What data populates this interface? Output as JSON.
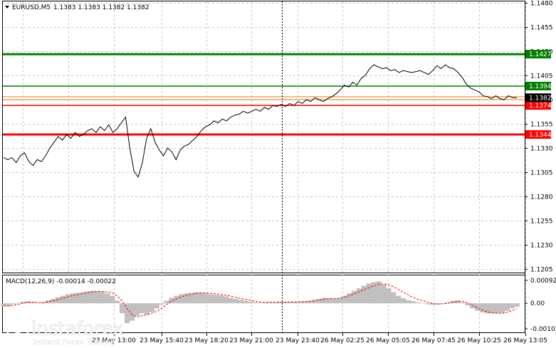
{
  "header": {
    "symbol": "EURUSD,M5",
    "ohlc": "1.1383 1.1383 1.1382 1.1382"
  },
  "macd": {
    "label": "MACD(12,26,9) -0.00014 -0.00022",
    "ticks": [
      "0.00092",
      "0.00",
      "-0.00102"
    ],
    "hist": [
      -0.00012,
      -0.0001,
      -4e-05,
      2e-05,
      6e-05,
      8e-05,
      4e-05,
      0.0,
      5e-05,
      0.00012,
      0.00018,
      0.00024,
      0.0003,
      0.00036,
      0.0004,
      0.00042,
      0.00045,
      0.00048,
      0.0005,
      0.00049,
      0.00046,
      0.0004,
      0.0003,
      0.0001,
      -0.0004,
      -0.0008,
      -0.0007,
      -0.0005,
      -0.0004,
      -0.00045,
      -0.00035,
      -0.0002,
      -5e-05,
      0.0001,
      0.00022,
      0.0003,
      0.00036,
      0.0004,
      0.00042,
      0.00044,
      0.00043,
      0.0004,
      0.00036,
      0.00034,
      0.00032,
      0.00028,
      0.00022,
      0.00018,
      0.00014,
      0.0001,
      6e-05,
      4e-05,
      2e-05,
      3e-05,
      4e-05,
      5e-05,
      6e-05,
      6e-05,
      6e-05,
      5e-05,
      6e-05,
      8e-05,
      0.0001,
      0.00014,
      0.00018,
      0.00022,
      0.0002,
      0.00018,
      0.00022,
      0.0003,
      0.0004,
      0.0005,
      0.0006,
      0.0007,
      0.0008,
      0.00085,
      0.00088,
      0.00075,
      0.0006,
      0.00045,
      0.0003,
      0.0002,
      0.00012,
      8e-05,
      4e-05,
      0.0,
      -4e-05,
      -6e-05,
      -4e-05,
      0.0,
      4e-05,
      0.0001,
      0.00012,
      4e-05,
      -8e-05,
      -0.0002,
      -0.0003,
      -0.00036,
      -0.0004,
      -0.0004,
      -0.0004,
      -0.00038,
      -0.0003,
      -0.0002,
      -0.00014
    ],
    "signal": [
      -0.0001,
      -0.00011,
      -8e-05,
      -4e-05,
      1e-05,
      4e-05,
      5e-05,
      4e-05,
      3e-05,
      6e-05,
      0.0001,
      0.00015,
      0.0002,
      0.00026,
      0.00031,
      0.00035,
      0.00039,
      0.00043,
      0.00046,
      0.00048,
      0.00048,
      0.00046,
      0.00042,
      0.0003,
      0.0001,
      -0.0002,
      -0.00045,
      -0.00055,
      -0.0005,
      -0.00046,
      -0.0004,
      -0.00032,
      -0.0002,
      -6e-05,
      8e-05,
      0.00018,
      0.00026,
      0.00032,
      0.00036,
      0.0004,
      0.00042,
      0.00042,
      0.0004,
      0.00038,
      0.00036,
      0.00033,
      0.00029,
      0.00024,
      0.0002,
      0.00016,
      0.00012,
      8e-05,
      5e-05,
      4e-05,
      4e-05,
      4e-05,
      5e-05,
      5e-05,
      6e-05,
      6e-05,
      6e-05,
      7e-05,
      8e-05,
      0.0001,
      0.00013,
      0.00017,
      0.00019,
      0.00019,
      0.0002,
      0.00024,
      0.0003,
      0.00038,
      0.00046,
      0.00054,
      0.00062,
      0.0007,
      0.00076,
      0.00078,
      0.00074,
      0.00066,
      0.00056,
      0.00044,
      0.00034,
      0.00024,
      0.00016,
      0.0001,
      4e-05,
      -1e-05,
      -3e-05,
      -2e-05,
      0.0,
      4e-05,
      8e-05,
      8e-05,
      2e-05,
      -8e-05,
      -0.00018,
      -0.00027,
      -0.00034,
      -0.00038,
      -0.0004,
      -0.0004,
      -0.00036,
      -0.00029,
      -0.00022
    ]
  },
  "watermark": {
    "brand": "instaforex",
    "tagline": "Instant Forex Trading"
  },
  "colors": {
    "green": "#008000",
    "red": "#ff0000",
    "orange": "#f4a460",
    "current": "#000000",
    "macd_hist": "#c0c0c0",
    "macd_signal": "#ff0000",
    "grid": "#c8c8c8"
  },
  "chart_data": {
    "type": "line",
    "title": "EURUSD,M5",
    "price_ticks": [
      "1.1480",
      "1.1455",
      "1.1430",
      "1.1405",
      "1.1380",
      "1.1355",
      "1.1330",
      "1.1305",
      "1.1280",
      "1.1255",
      "1.1230",
      "1.1205"
    ],
    "ylim": [
      1.1201,
      1.1482
    ],
    "x_ticks": [
      "23 May 13:00",
      "23 May 15:40",
      "23 May 18:20",
      "23 May 21:00",
      "23 May 23:40",
      "26 May 02:25",
      "26 May 05:05",
      "26 May 07:45",
      "26 May 10:25",
      "26 May 13:05"
    ],
    "levels": [
      {
        "value": 1.1427,
        "label": "1.1427",
        "color": "#008000",
        "style": "thick"
      },
      {
        "value": 1.1394,
        "label": "1.1394",
        "color": "#008000",
        "style": "thin"
      },
      {
        "value": 1.1383,
        "label": "",
        "color": "#f4a460",
        "style": "thin"
      },
      {
        "value": 1.138,
        "label": "",
        "color": "#f4a460",
        "style": "thin"
      },
      {
        "value": 1.1374,
        "label": "1.1374",
        "color": "#ff0000",
        "style": "thin"
      },
      {
        "value": 1.1344,
        "label": "1.1344",
        "color": "#ff0000",
        "style": "thick"
      }
    ],
    "current_price": {
      "value": 1.1382,
      "label": "1.1382"
    },
    "series": [
      {
        "values": [
          1.132,
          1.1318,
          1.132,
          1.1315,
          1.1322,
          1.1325,
          1.1316,
          1.1312,
          1.1318,
          1.1316,
          1.1322,
          1.133,
          1.1336,
          1.1342,
          1.1338,
          1.1344,
          1.134,
          1.1346,
          1.1342,
          1.1344,
          1.1348,
          1.135,
          1.1346,
          1.1352,
          1.1348,
          1.1354,
          1.1346,
          1.135,
          1.1356,
          1.1362,
          1.133,
          1.1306,
          1.13,
          1.1315,
          1.134,
          1.135,
          1.1336,
          1.1328,
          1.1322,
          1.133,
          1.1326,
          1.1318,
          1.1328,
          1.1332,
          1.1334,
          1.1338,
          1.1342,
          1.1348,
          1.1352,
          1.1354,
          1.1358,
          1.1356,
          1.136,
          1.1358,
          1.1362,
          1.1364,
          1.1365,
          1.1368,
          1.1366,
          1.1368,
          1.137,
          1.1368,
          1.1372,
          1.137,
          1.1374,
          1.1373,
          1.1375,
          1.1373,
          1.1376,
          1.1374,
          1.1378,
          1.1376,
          1.138,
          1.1378,
          1.1382,
          1.138,
          1.1378,
          1.1381,
          1.1383,
          1.1386,
          1.139,
          1.1395,
          1.1393,
          1.1398,
          1.1395,
          1.1402,
          1.1405,
          1.1412,
          1.1416,
          1.1414,
          1.1412,
          1.1413,
          1.141,
          1.1411,
          1.1408,
          1.141,
          1.1409,
          1.1408,
          1.1409,
          1.141,
          1.1408,
          1.1406,
          1.141,
          1.1415,
          1.1412,
          1.1416,
          1.1413,
          1.1412,
          1.1408,
          1.1403,
          1.1396,
          1.1392,
          1.139,
          1.1388,
          1.1384,
          1.1383,
          1.1381,
          1.1384,
          1.1381,
          1.138,
          1.1384,
          1.1382,
          1.1382
        ]
      }
    ]
  }
}
